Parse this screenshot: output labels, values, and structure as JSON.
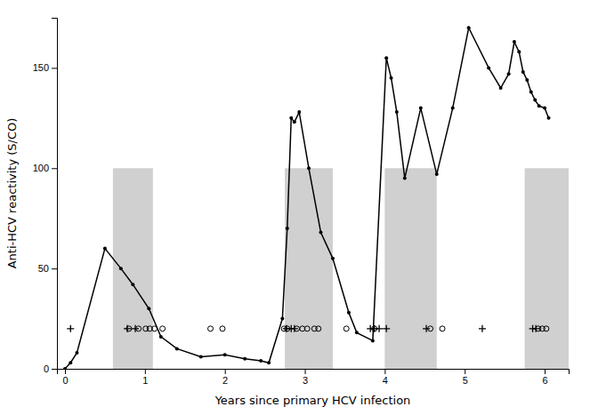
{
  "chart_data": {
    "type": "line",
    "xlabel": "Years since primary HCV infection",
    "ylabel": "Anti-HCV reactivity  (S/CO)",
    "xlim": [
      -0.1,
      6.3
    ],
    "ylim": [
      0,
      175
    ],
    "xticks": [
      0,
      1,
      2,
      3,
      4,
      5,
      6
    ],
    "yticks": [
      0,
      50,
      100,
      150
    ],
    "grid": false,
    "bands": [
      [
        0.6,
        1.1
      ],
      [
        2.75,
        3.35
      ],
      [
        4.0,
        4.65
      ],
      [
        5.75,
        6.3
      ]
    ],
    "band_top": 100,
    "band_color": "#d0d0d0",
    "series": [
      {
        "type": "line",
        "marker": "dot",
        "color": "#000000",
        "x": [
          0.0,
          0.07,
          0.15,
          0.5,
          0.7,
          0.85,
          1.05,
          1.2,
          1.4,
          1.7,
          2.0,
          2.25,
          2.45,
          2.55,
          2.72,
          2.78,
          2.83,
          2.87,
          2.93,
          3.05,
          3.2,
          3.35,
          3.55,
          3.65,
          3.85,
          4.02,
          4.08,
          4.15,
          4.25,
          4.45,
          4.65,
          4.85,
          5.05,
          5.3,
          5.45,
          5.55,
          5.62,
          5.68,
          5.73,
          5.78,
          5.83,
          5.88,
          5.93,
          6.0,
          6.05
        ],
        "values": [
          0,
          3,
          8,
          60,
          50,
          42,
          30,
          16,
          10,
          6,
          7,
          5,
          4,
          3,
          25,
          70,
          125,
          123,
          128,
          100,
          68,
          55,
          28,
          18,
          14,
          155,
          145,
          128,
          95,
          130,
          97,
          130,
          170,
          150,
          140,
          147,
          163,
          158,
          148,
          144,
          138,
          134,
          131,
          130,
          125
        ]
      },
      {
        "type": "scatter",
        "marker": "plus",
        "color": "#000000",
        "x": [
          0.07,
          0.78,
          0.88,
          2.77,
          2.83,
          2.87,
          3.82,
          3.87,
          3.93,
          4.02,
          4.52,
          5.22,
          5.85,
          5.89
        ],
        "values": [
          20,
          20,
          20,
          20,
          20,
          20,
          20,
          20,
          20,
          20,
          20,
          20,
          20,
          20
        ]
      },
      {
        "type": "scatter",
        "marker": "circle",
        "color": "#000000",
        "x": [
          0.8,
          0.92,
          1.01,
          1.06,
          1.12,
          1.22,
          1.82,
          1.97,
          2.74,
          2.78,
          2.9,
          2.97,
          3.03,
          3.12,
          3.17,
          3.52,
          3.87,
          4.57,
          4.72,
          5.92,
          5.97,
          6.02
        ],
        "values": [
          20,
          20,
          20,
          20,
          20,
          20,
          20,
          20,
          20,
          20,
          20,
          20,
          20,
          20,
          20,
          20,
          20,
          20,
          20,
          20,
          20,
          20
        ]
      }
    ]
  }
}
